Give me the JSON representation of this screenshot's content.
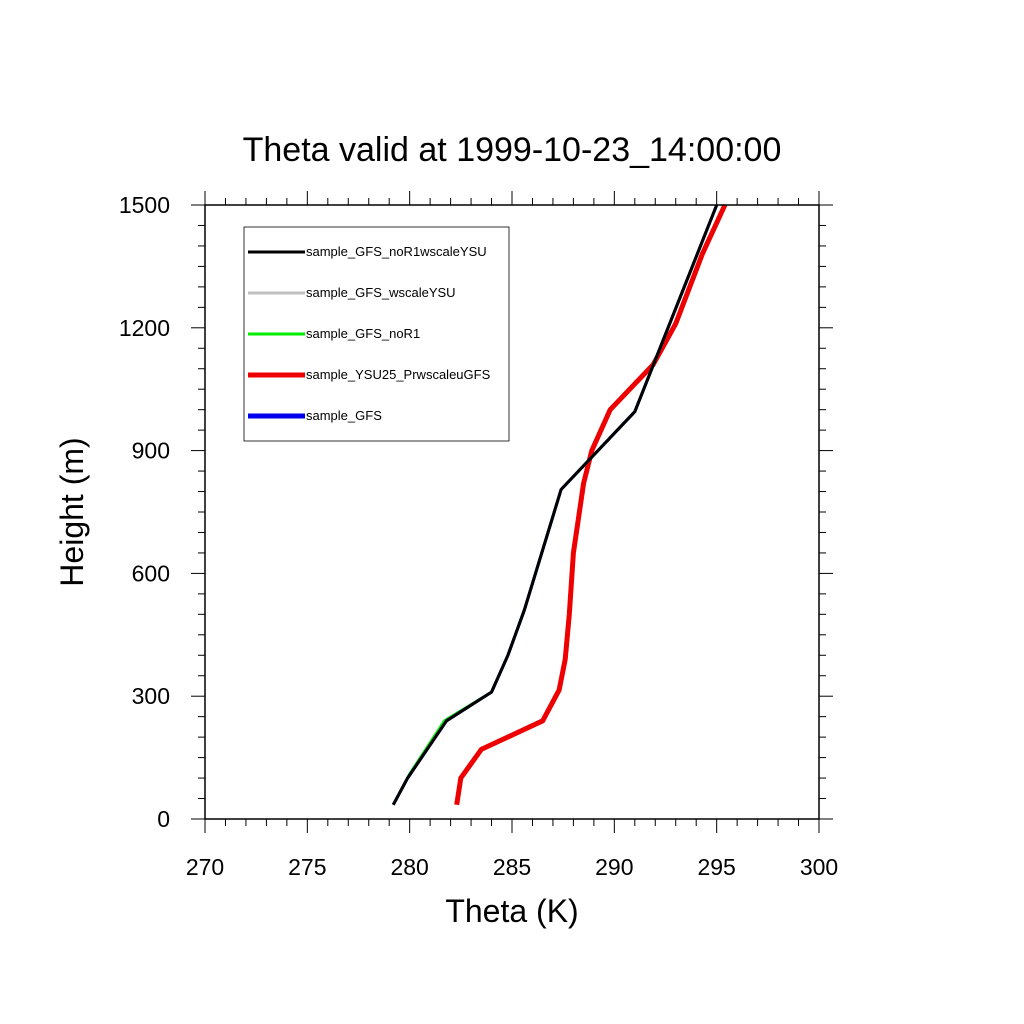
{
  "chart_data": {
    "type": "line",
    "title": "Theta valid at 1999-10-23_14:00:00",
    "xlabel": "Theta (K)",
    "ylabel": "Height (m)",
    "xlim": [
      270,
      300
    ],
    "ylim": [
      0,
      1500
    ],
    "x_ticks": [
      270,
      275,
      280,
      285,
      290,
      295,
      300
    ],
    "y_ticks": [
      0,
      300,
      600,
      900,
      1200,
      1500
    ],
    "x_tick_labels": [
      "270",
      "275",
      "280",
      "285",
      "290",
      "295",
      "300"
    ],
    "y_tick_labels": [
      "0",
      "300",
      "600",
      "900",
      "1200",
      "1500"
    ],
    "grid": false,
    "legend_position": "top-left",
    "series": [
      {
        "name": "sample_GFS_noR1wscaleYSU",
        "color": "#000000",
        "points": [
          [
            279.2,
            35
          ],
          [
            279.9,
            100
          ],
          [
            281.8,
            240
          ],
          [
            284.0,
            310
          ],
          [
            284.8,
            400
          ],
          [
            285.6,
            510
          ],
          [
            287.4,
            805
          ],
          [
            291.0,
            995
          ],
          [
            295.0,
            1500
          ]
        ]
      },
      {
        "name": "sample_GFS_wscaleYSU",
        "color": "#c0c0c0",
        "points": [
          [
            279.2,
            35
          ],
          [
            279.9,
            100
          ],
          [
            281.8,
            240
          ],
          [
            284.0,
            310
          ],
          [
            284.8,
            400
          ],
          [
            285.6,
            510
          ],
          [
            287.4,
            805
          ],
          [
            291.0,
            995
          ],
          [
            295.0,
            1500
          ]
        ]
      },
      {
        "name": "sample_GFS_noR1",
        "color": "#00ee00",
        "points": [
          [
            279.2,
            35
          ],
          [
            280.0,
            110
          ],
          [
            281.7,
            240
          ],
          [
            284.0,
            310
          ],
          [
            284.8,
            400
          ],
          [
            285.6,
            510
          ],
          [
            287.4,
            805
          ],
          [
            291.0,
            995
          ],
          [
            295.0,
            1500
          ]
        ]
      },
      {
        "name": "sample_YSU25_PrwscaleuGFS",
        "color": "#ee0000",
        "points": [
          [
            282.3,
            35
          ],
          [
            282.5,
            100
          ],
          [
            283.5,
            170
          ],
          [
            286.5,
            240
          ],
          [
            287.3,
            315
          ],
          [
            287.6,
            390
          ],
          [
            287.8,
            500
          ],
          [
            288.0,
            650
          ],
          [
            288.5,
            820
          ],
          [
            288.9,
            900
          ],
          [
            289.8,
            1000
          ],
          [
            291.9,
            1110
          ],
          [
            293.0,
            1210
          ],
          [
            294.3,
            1380
          ],
          [
            295.4,
            1500
          ]
        ]
      },
      {
        "name": "sample_GFS",
        "color": "#0000ee",
        "points": [
          [
            279.2,
            35
          ],
          [
            279.9,
            100
          ],
          [
            281.8,
            240
          ],
          [
            284.0,
            310
          ],
          [
            284.8,
            400
          ],
          [
            285.6,
            510
          ],
          [
            287.4,
            805
          ],
          [
            291.0,
            995
          ],
          [
            295.0,
            1500
          ]
        ]
      }
    ]
  }
}
